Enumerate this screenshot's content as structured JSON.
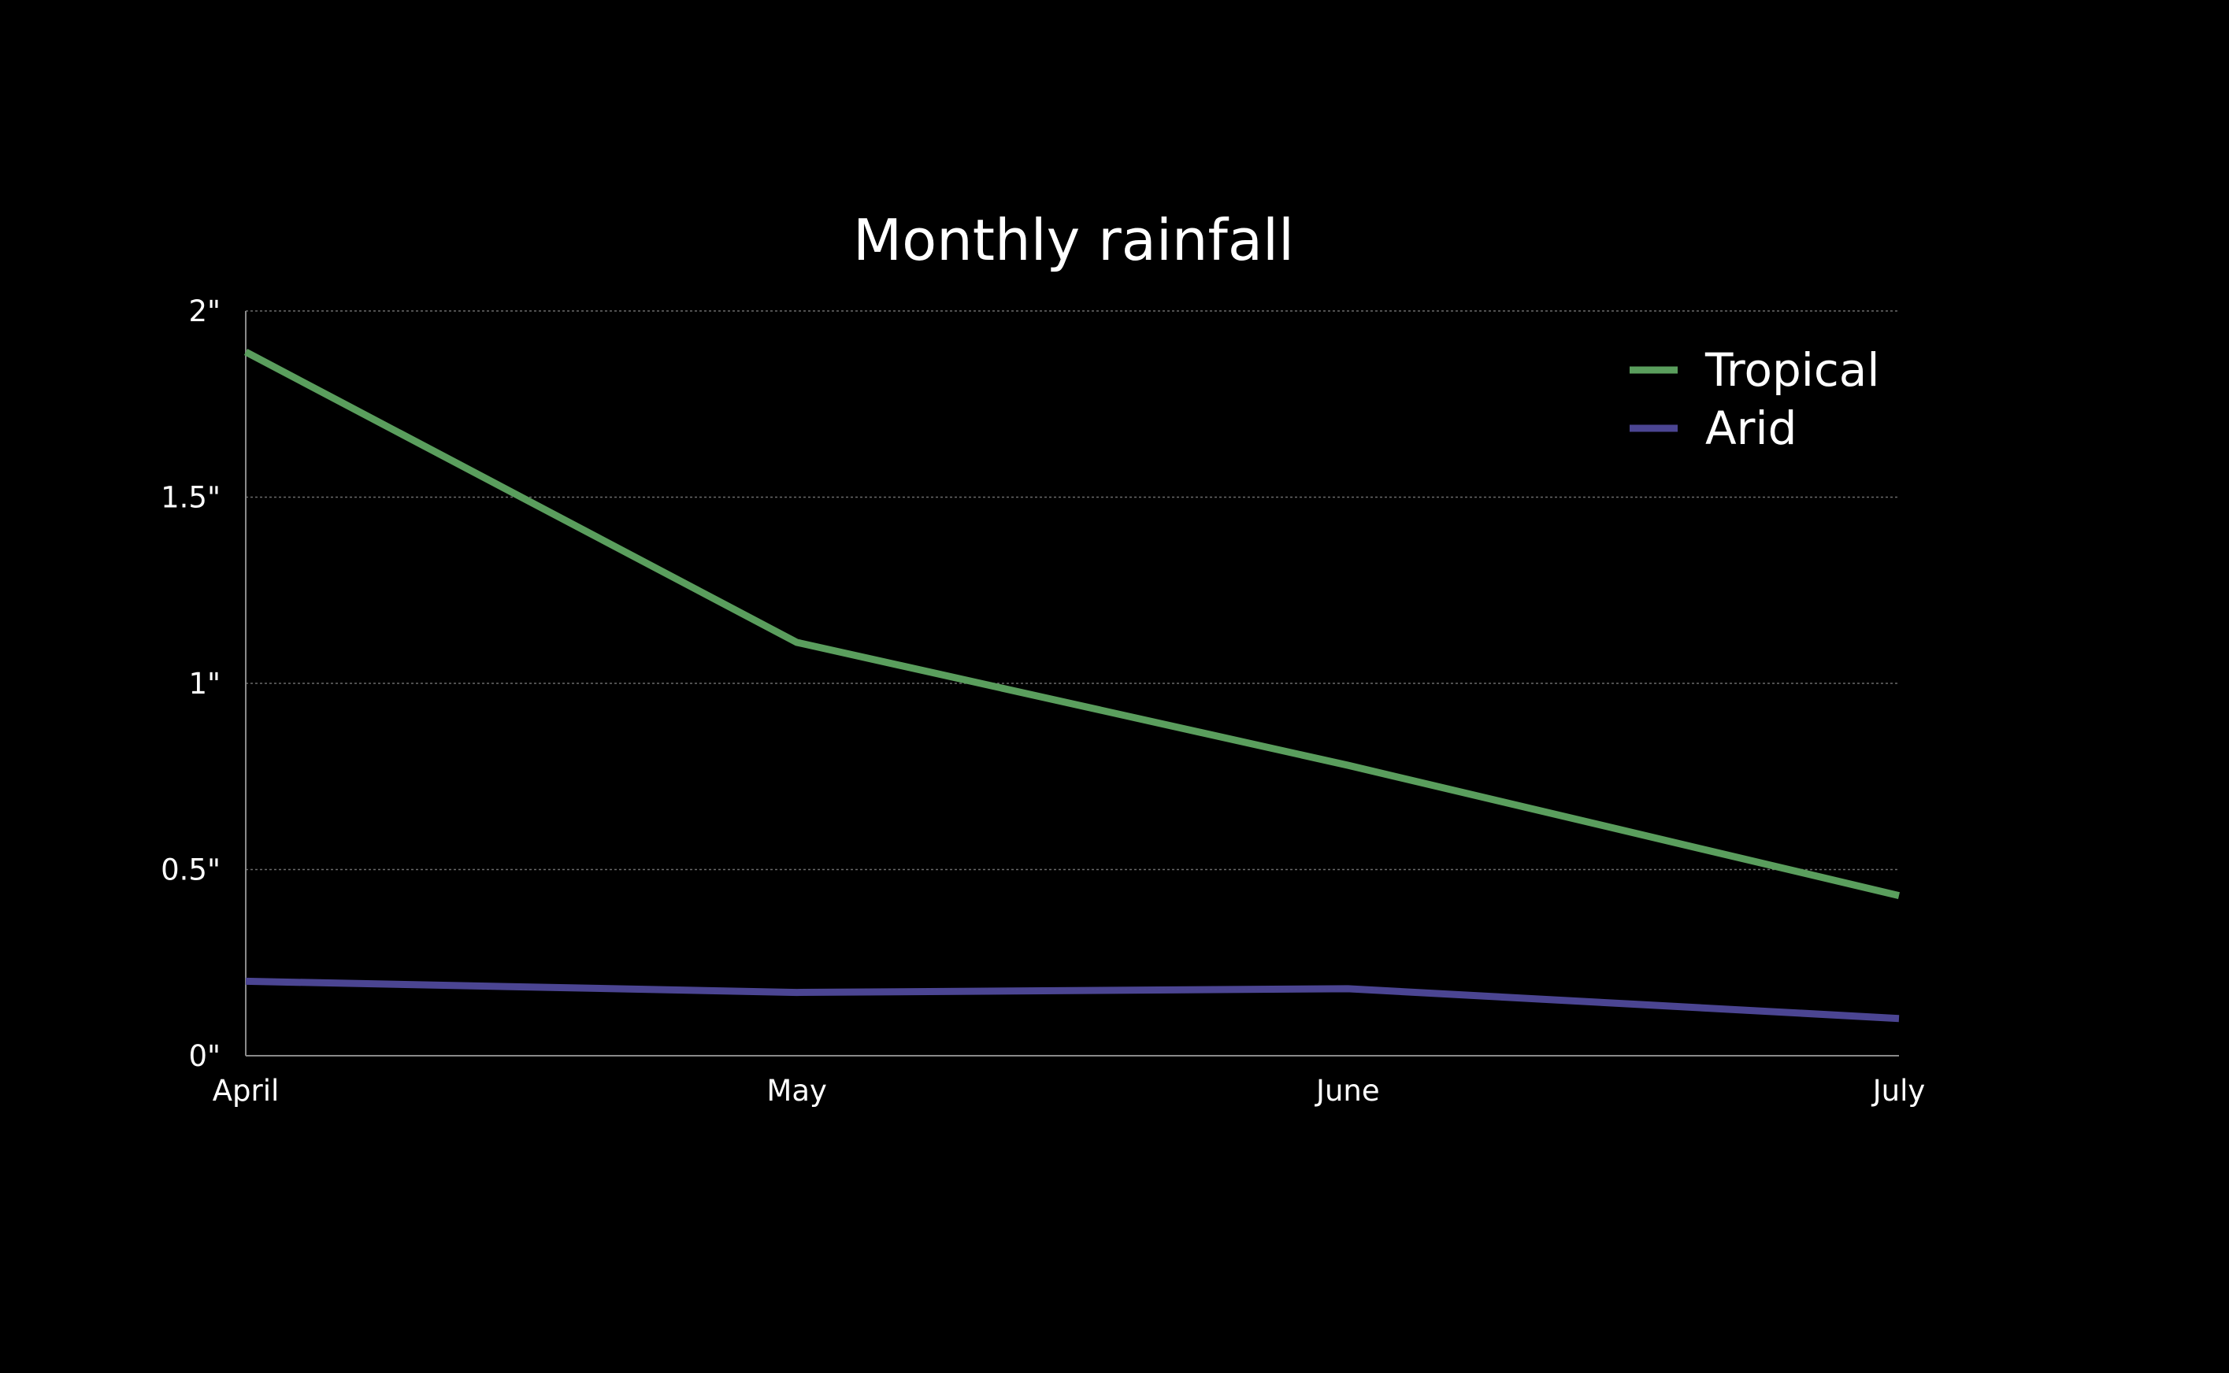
{
  "chart_data": {
    "type": "line",
    "title": "Monthly rainfall",
    "categories": [
      "April",
      "May",
      "June",
      "July"
    ],
    "series": [
      {
        "name": "Tropical",
        "color": "#5a9e5d",
        "values": [
          1.89,
          1.11,
          0.78,
          0.43
        ]
      },
      {
        "name": "Arid",
        "color": "#4b4592",
        "values": [
          0.2,
          0.17,
          0.18,
          0.1
        ]
      }
    ],
    "yticks": [
      0,
      0.5,
      1,
      1.5,
      2
    ],
    "ytick_labels": [
      "0\"",
      "0.5\"",
      "1\"",
      "1.5\"",
      "2\""
    ],
    "ylim": [
      0,
      2
    ],
    "grid": true,
    "legend_position": "top-right",
    "xlabel": "",
    "ylabel": ""
  }
}
